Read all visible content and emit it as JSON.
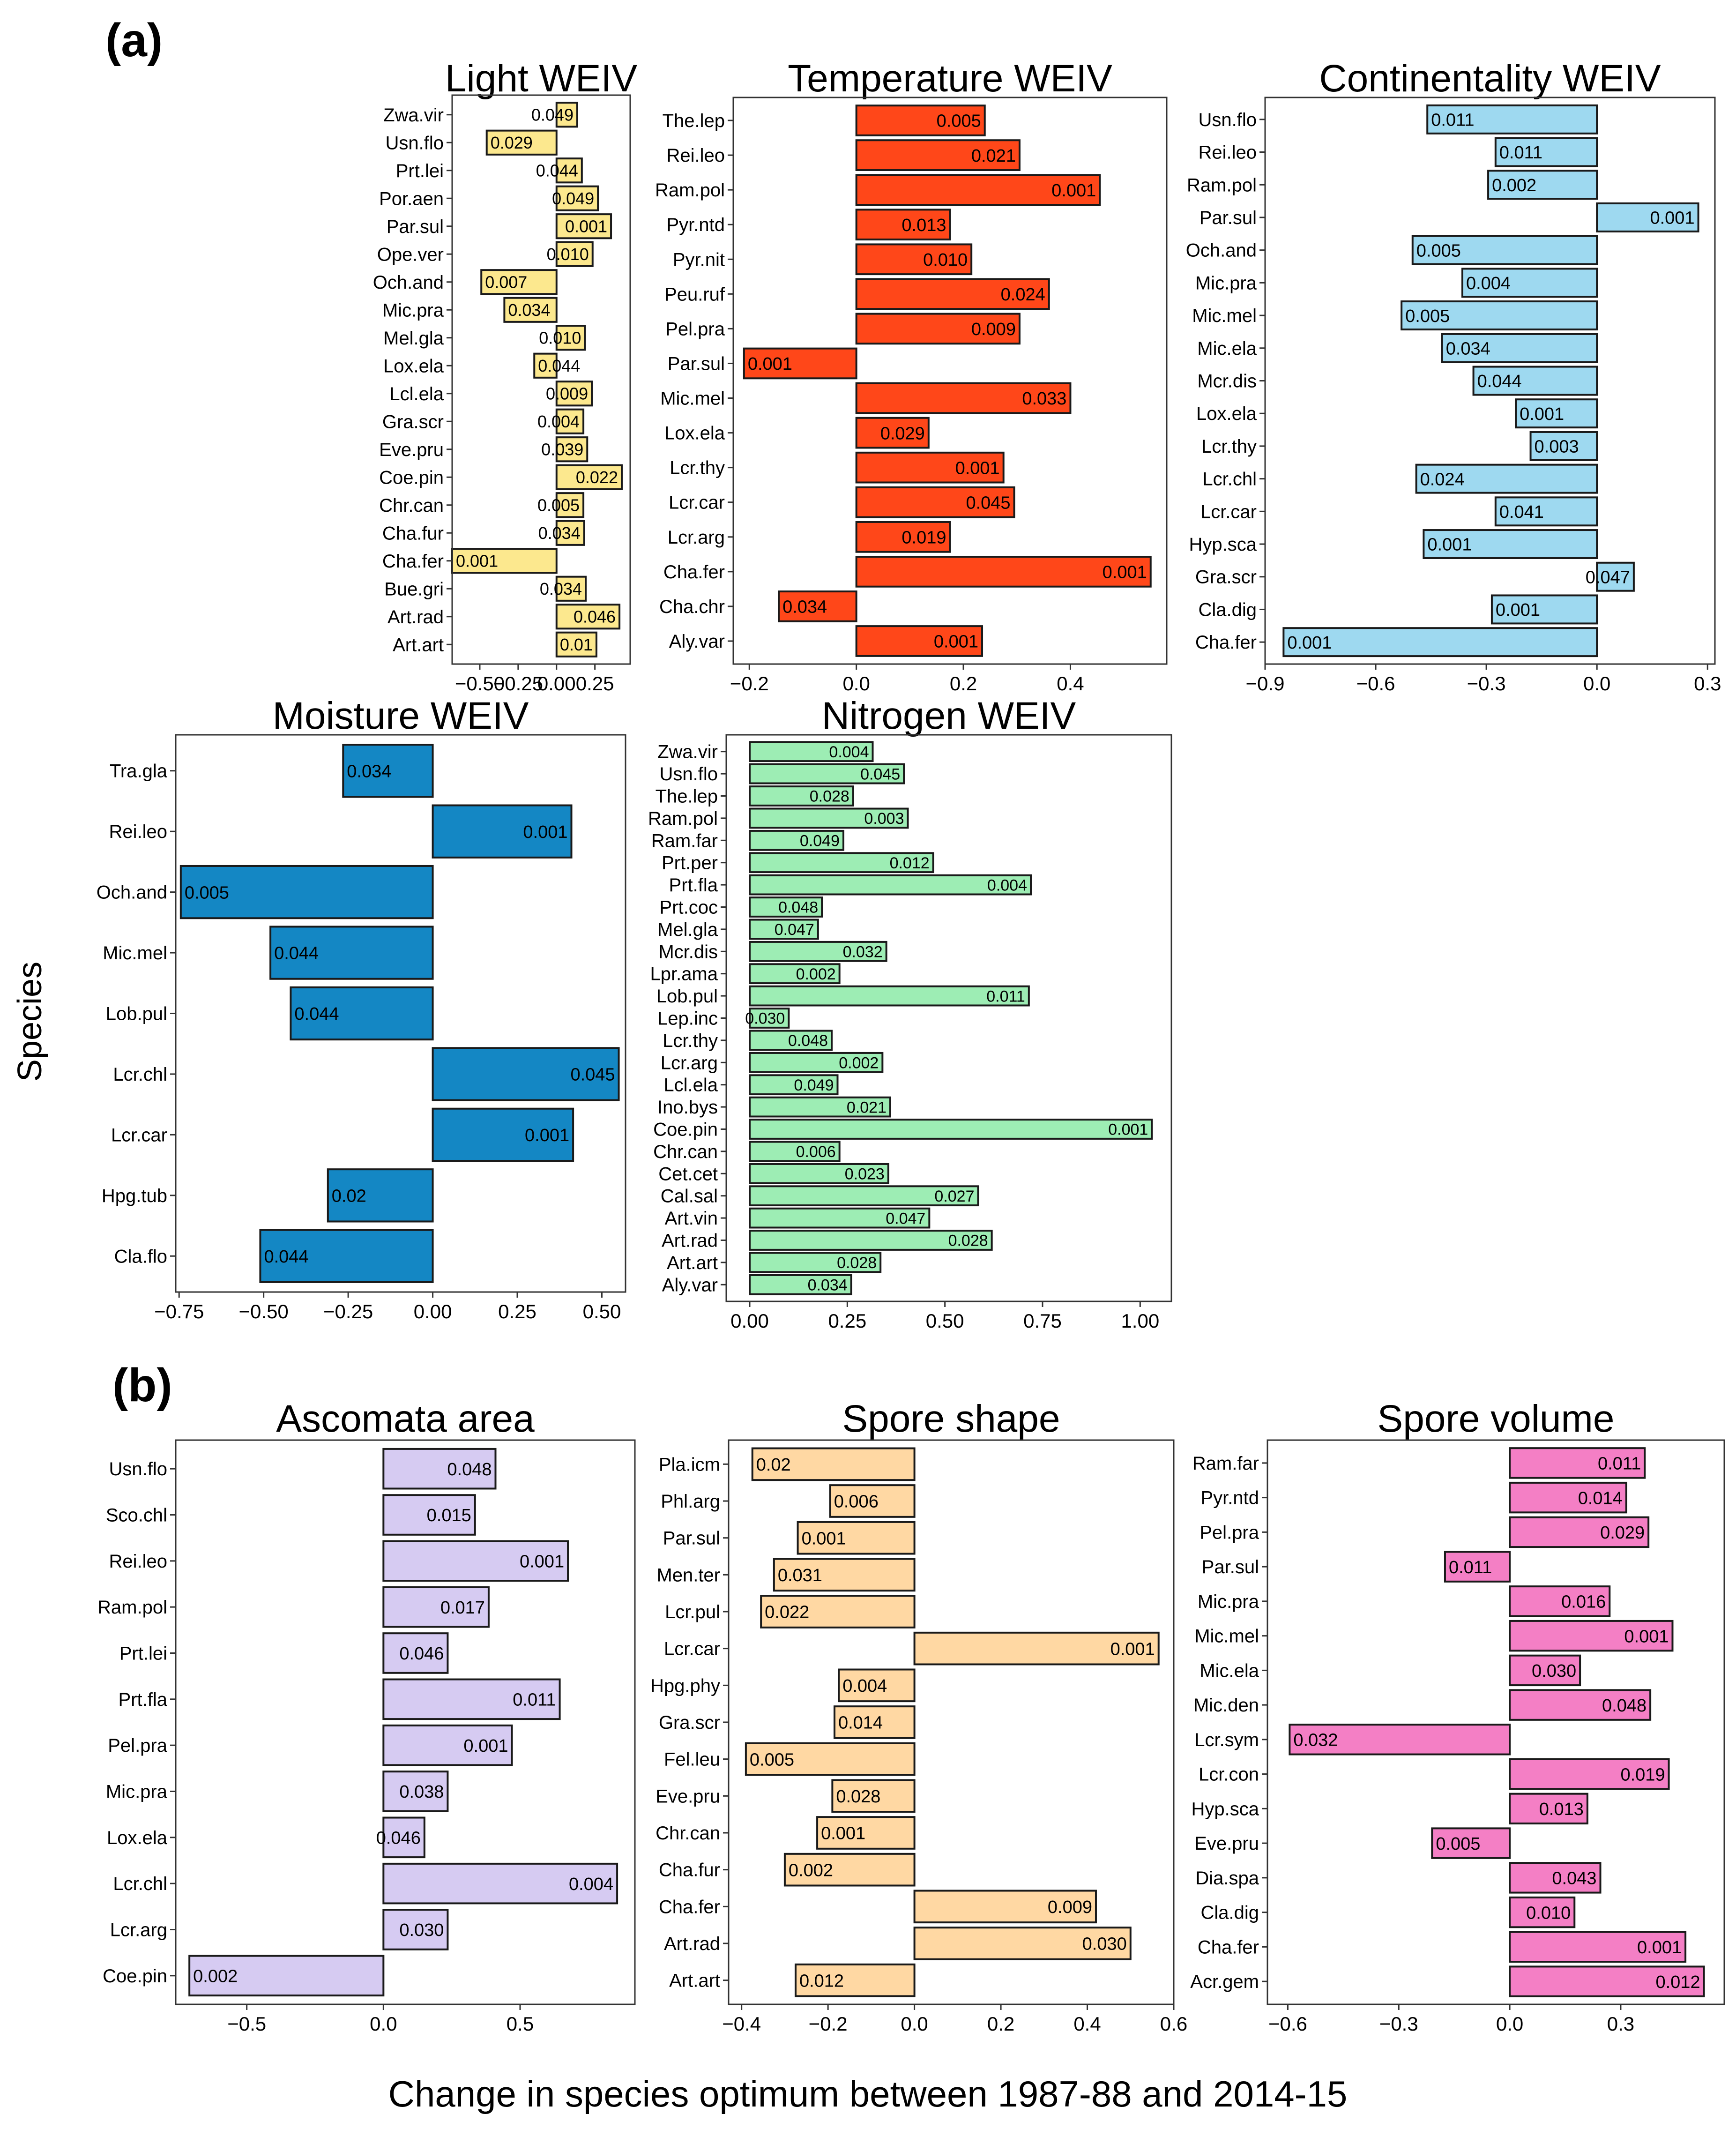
{
  "figure": {
    "panel_a_label": "(a)",
    "panel_b_label": "(b)",
    "y_axis_title": "Species",
    "x_axis_title": "Change in species optimum between 1987-88 and 2014-15"
  },
  "chart_data": [
    {
      "id": "light",
      "type": "bar",
      "orientation": "horizontal",
      "title": "Light WEIV",
      "color": "#FCE88E",
      "xlim": [
        -0.68,
        0.48
      ],
      "xticks": [
        -0.5,
        -0.25,
        0.0,
        0.25
      ],
      "xtick_labels": [
        "−0.50",
        "−0.25",
        "0.00",
        "0.25"
      ],
      "categories": [
        "Zwa.vir",
        "Usn.flo",
        "Prt.lei",
        "Por.aen",
        "Par.sul",
        "Ope.ver",
        "Och.and",
        "Mic.pra",
        "Mel.gla",
        "Lox.ela",
        "Lcl.ela",
        "Gra.scr",
        "Eve.pru",
        "Coe.pin",
        "Chr.can",
        "Cha.fur",
        "Cha.fer",
        "Bue.gri",
        "Art.rad",
        "Art.art"
      ],
      "values": [
        0.135,
        -0.455,
        0.165,
        0.27,
        0.355,
        0.235,
        -0.49,
        -0.34,
        0.185,
        -0.145,
        0.23,
        0.175,
        0.2,
        0.425,
        0.175,
        0.18,
        -0.68,
        0.19,
        0.41,
        0.26
      ],
      "labels": [
        "0.049",
        "0.029",
        "0.044",
        "0.049",
        "0.001",
        "0.010",
        "0.007",
        "0.034",
        "0.010",
        "0.044",
        "0.009",
        "0.004",
        "0.039",
        "0.022",
        "0.005",
        "0.034",
        "0.001",
        "0.034",
        "0.046",
        "0.01"
      ]
    },
    {
      "id": "temperature",
      "type": "bar",
      "orientation": "horizontal",
      "title": "Temperature WEIV",
      "color": "#FF4719",
      "xlim": [
        -0.23,
        0.58
      ],
      "xticks": [
        -0.2,
        0.0,
        0.2,
        0.4
      ],
      "xtick_labels": [
        "−0.2",
        "0.0",
        "0.2",
        "0.4"
      ],
      "categories": [
        "The.lep",
        "Rei.leo",
        "Ram.pol",
        "Pyr.ntd",
        "Pyr.nit",
        "Peu.ruf",
        "Pel.pra",
        "Par.sul",
        "Mic.mel",
        "Lox.ela",
        "Lcr.thy",
        "Lcr.car",
        "Lcr.arg",
        "Cha.fer",
        "Cha.chr",
        "Aly.var"
      ],
      "values": [
        0.24,
        0.305,
        0.455,
        0.175,
        0.215,
        0.36,
        0.305,
        -0.21,
        0.4,
        0.135,
        0.275,
        0.295,
        0.175,
        0.55,
        -0.145,
        0.235
      ],
      "labels": [
        "0.005",
        "0.021",
        "0.001",
        "0.013",
        "0.010",
        "0.024",
        "0.009",
        "0.001",
        "0.033",
        "0.029",
        "0.001",
        "0.045",
        "0.019",
        "0.001",
        "0.034",
        "0.001"
      ]
    },
    {
      "id": "continentality",
      "type": "bar",
      "orientation": "horizontal",
      "title": "Continentality WEIV",
      "color": "#9ED9F0",
      "xlim": [
        -0.9,
        0.32
      ],
      "xticks": [
        -0.9,
        -0.6,
        -0.3,
        0.0,
        0.3
      ],
      "xtick_labels": [
        "−0.9",
        "−0.6",
        "−0.3",
        "0.0",
        "0.3"
      ],
      "categories": [
        "Usn.flo",
        "Rei.leo",
        "Ram.pol",
        "Par.sul",
        "Och.and",
        "Mic.pra",
        "Mic.mel",
        "Mic.ela",
        "Mcr.dis",
        "Lox.ela",
        "Lcr.thy",
        "Lcr.chl",
        "Lcr.car",
        "Hyp.sca",
        "Gra.scr",
        "Cla.dig",
        "Cha.fer"
      ],
      "values": [
        -0.46,
        -0.275,
        -0.295,
        0.275,
        -0.5,
        -0.365,
        -0.53,
        -0.42,
        -0.335,
        -0.22,
        -0.18,
        -0.49,
        -0.275,
        -0.47,
        0.1,
        -0.285,
        -0.85
      ],
      "labels": [
        "0.011",
        "0.011",
        "0.002",
        "0.001",
        "0.005",
        "0.004",
        "0.005",
        "0.034",
        "0.044",
        "0.001",
        "0.003",
        "0.024",
        "0.041",
        "0.001",
        "0.047",
        "0.001",
        "0.001"
      ]
    },
    {
      "id": "moisture",
      "type": "bar",
      "orientation": "horizontal",
      "title": "Moisture WEIV",
      "color": "#1487C4",
      "xlim": [
        -0.76,
        0.57
      ],
      "xticks": [
        -0.75,
        -0.5,
        -0.25,
        0.0,
        0.25,
        0.5
      ],
      "xtick_labels": [
        "−0.75",
        "−0.50",
        "−0.25",
        "0.00",
        "0.25",
        "0.50"
      ],
      "categories": [
        "Tra.gla",
        "Rei.leo",
        "Och.and",
        "Mic.mel",
        "Lob.pul",
        "Lcr.chl",
        "Lcr.car",
        "Hpg.tub",
        "Cla.flo"
      ],
      "values": [
        -0.265,
        0.41,
        -0.745,
        -0.48,
        -0.42,
        0.55,
        0.415,
        -0.31,
        -0.51
      ],
      "labels": [
        "0.034",
        "0.001",
        "0.005",
        "0.044",
        "0.044",
        "0.045",
        "0.001",
        "0.02",
        "0.044"
      ]
    },
    {
      "id": "nitrogen",
      "type": "bar",
      "orientation": "horizontal",
      "title": "Nitrogen WEIV",
      "color": "#9DEDB4",
      "xlim": [
        -0.06,
        1.08
      ],
      "xticks": [
        0.0,
        0.25,
        0.5,
        0.75,
        1.0
      ],
      "xtick_labels": [
        "0.00",
        "0.25",
        "0.50",
        "0.75",
        "1.00"
      ],
      "categories": [
        "Zwa.vir",
        "Usn.flo",
        "The.lep",
        "Ram.pol",
        "Ram.far",
        "Prt.per",
        "Prt.fla",
        "Prt.coc",
        "Mel.gla",
        "Mcr.dis",
        "Lpr.ama",
        "Lob.pul",
        "Lep.inc",
        "Lcr.thy",
        "Lcr.arg",
        "Lcl.ela",
        "Ino.bys",
        "Coe.pin",
        "Chr.can",
        "Cet.cet",
        "Cal.sal",
        "Art.vin",
        "Art.rad",
        "Art.art",
        "Aly.var"
      ],
      "values": [
        0.315,
        0.395,
        0.265,
        0.405,
        0.24,
        0.47,
        0.72,
        0.185,
        0.175,
        0.35,
        0.23,
        0.715,
        0.1,
        0.21,
        0.34,
        0.225,
        0.36,
        1.03,
        0.23,
        0.355,
        0.585,
        0.46,
        0.62,
        0.335,
        0.26
      ],
      "labels": [
        "0.004",
        "0.045",
        "0.028",
        "0.003",
        "0.049",
        "0.012",
        "0.004",
        "0.048",
        "0.047",
        "0.032",
        "0.002",
        "0.011",
        "0.030",
        "0.048",
        "0.002",
        "0.049",
        "0.021",
        "0.001",
        "0.006",
        "0.023",
        "0.027",
        "0.047",
        "0.028",
        "0.028",
        "0.034"
      ]
    },
    {
      "id": "ascomata",
      "type": "bar",
      "orientation": "horizontal",
      "title": "Ascomata area",
      "color": "#D6CBF2",
      "xlim": [
        -0.76,
        0.92
      ],
      "xticks": [
        -0.5,
        0.0,
        0.5
      ],
      "xtick_labels": [
        "−0.5",
        "0.0",
        "0.5"
      ],
      "categories": [
        "Usn.flo",
        "Sco.chl",
        "Rei.leo",
        "Ram.pol",
        "Prt.lei",
        "Prt.fla",
        "Pel.pra",
        "Mic.pra",
        "Lox.ela",
        "Lcr.chl",
        "Lcr.arg",
        "Coe.pin"
      ],
      "values": [
        0.41,
        0.335,
        0.675,
        0.385,
        0.235,
        0.645,
        0.47,
        0.235,
        0.15,
        0.855,
        0.235,
        -0.71
      ],
      "labels": [
        "0.048",
        "0.015",
        "0.001",
        "0.017",
        "0.046",
        "0.011",
        "0.001",
        "0.038",
        "0.046",
        "0.004",
        "0.030",
        "0.002"
      ]
    },
    {
      "id": "spore_shape",
      "type": "bar",
      "orientation": "horizontal",
      "title": "Spore shape",
      "color": "#FFD8A3",
      "xlim": [
        -0.43,
        0.6
      ],
      "xticks": [
        -0.4,
        -0.2,
        0.0,
        0.2,
        0.4,
        0.6
      ],
      "xtick_labels": [
        "−0.4",
        "−0.2",
        "0.0",
        "0.2",
        "0.4",
        "0.6"
      ],
      "categories": [
        "Pla.icm",
        "Phl.arg",
        "Par.sul",
        "Men.ter",
        "Lcr.pul",
        "Lcr.car",
        "Hpg.phy",
        "Gra.scr",
        "Fel.leu",
        "Eve.pru",
        "Chr.can",
        "Cha.fur",
        "Cha.fer",
        "Art.rad",
        "Art.art"
      ],
      "values": [
        -0.375,
        -0.195,
        -0.27,
        -0.325,
        -0.355,
        0.565,
        -0.175,
        -0.185,
        -0.39,
        -0.19,
        -0.225,
        -0.3,
        0.42,
        0.5,
        -0.275
      ],
      "labels": [
        "0.02",
        "0.006",
        "0.001",
        "0.031",
        "0.022",
        "0.001",
        "0.004",
        "0.014",
        "0.005",
        "0.028",
        "0.001",
        "0.002",
        "0.009",
        "0.030",
        "0.012"
      ]
    },
    {
      "id": "spore_volume",
      "type": "bar",
      "orientation": "horizontal",
      "title": "Spore volume",
      "color": "#F47FC5",
      "xlim": [
        -0.655,
        0.58
      ],
      "xticks": [
        -0.6,
        -0.3,
        0.0,
        0.3
      ],
      "xtick_labels": [
        "−0.6",
        "−0.3",
        "0.0",
        "0.3"
      ],
      "categories": [
        "Ram.far",
        "Pyr.ntd",
        "Pel.pra",
        "Par.sul",
        "Mic.pra",
        "Mic.mel",
        "Mic.ela",
        "Mic.den",
        "Lcr.sym",
        "Lcr.con",
        "Hyp.sca",
        "Eve.pru",
        "Dia.spa",
        "Cla.dig",
        "Cha.fer",
        "Acr.gem"
      ],
      "values": [
        0.365,
        0.315,
        0.375,
        -0.175,
        0.27,
        0.44,
        0.19,
        0.38,
        -0.595,
        0.43,
        0.21,
        -0.21,
        0.245,
        0.175,
        0.475,
        0.525
      ],
      "labels": [
        "0.011",
        "0.014",
        "0.029",
        "0.011",
        "0.016",
        "0.001",
        "0.030",
        "0.048",
        "0.032",
        "0.019",
        "0.013",
        "0.005",
        "0.043",
        "0.010",
        "0.001",
        "0.012"
      ]
    }
  ]
}
